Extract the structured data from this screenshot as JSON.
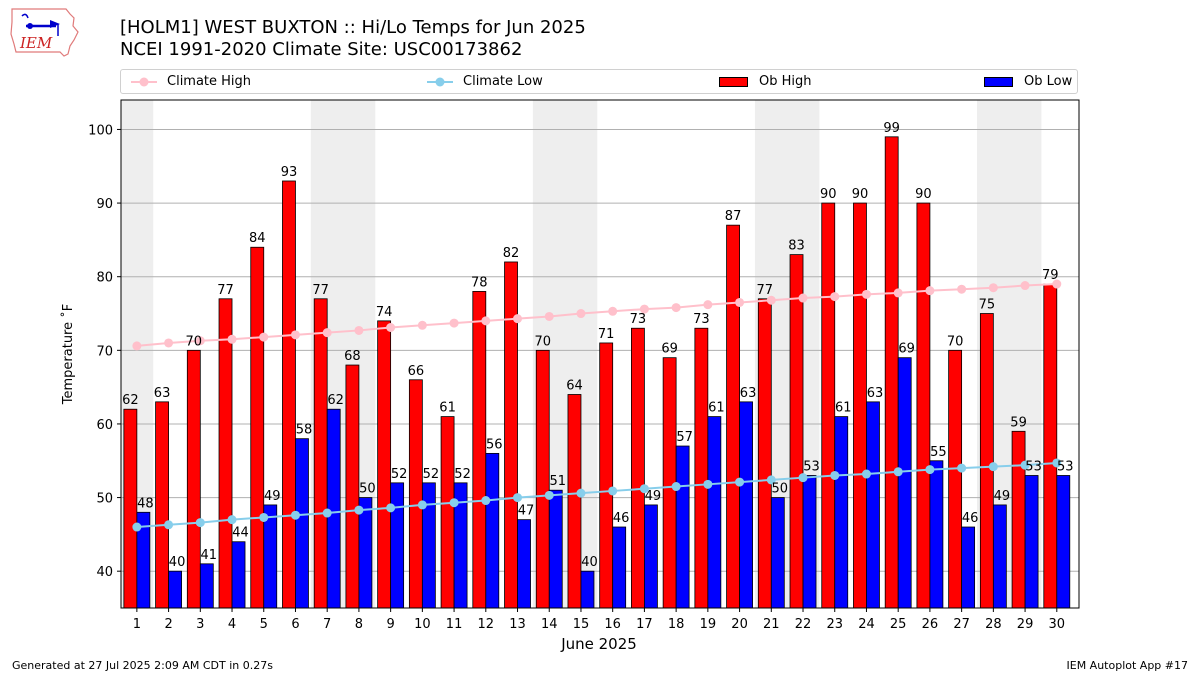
{
  "header": {
    "title_line1": "[HOLM1] WEST BUXTON :: Hi/Lo Temps for Jun 2025",
    "title_line2": "NCEI 1991-2020 Climate Site: USC00173862",
    "logo_text": "IEM"
  },
  "footer": {
    "generated": "Generated at 27 Jul 2025 2:09 AM CDT in 0.27s",
    "app": "IEM Autoplot App #17"
  },
  "colors": {
    "ob_high": "#ff0000",
    "ob_low": "#0000ff",
    "climate_high": "#ffc0cb",
    "climate_low": "#87ceeb",
    "weekend_band": "#eeeeee",
    "grid": "#b0b0b0"
  },
  "chart_data": {
    "type": "bar",
    "title": "[HOLM1] WEST BUXTON :: Hi/Lo Temps for Jun 2025",
    "subtitle": "NCEI 1991-2020 Climate Site: USC00173862",
    "xlabel": "June 2025",
    "ylabel": "Temperature $^\\circ$F",
    "ylabel_display": "Temperature ˚F",
    "ylim": [
      35,
      104
    ],
    "yticks": [
      40,
      50,
      60,
      70,
      80,
      90,
      100
    ],
    "grid": true,
    "legend_position": "top",
    "legend": [
      "Climate High",
      "Climate Low",
      "Ob High",
      "Ob Low"
    ],
    "categories": [
      "1",
      "2",
      "3",
      "4",
      "5",
      "6",
      "7",
      "8",
      "9",
      "10",
      "11",
      "12",
      "13",
      "14",
      "15",
      "16",
      "17",
      "18",
      "19",
      "20",
      "21",
      "22",
      "23",
      "24",
      "25",
      "26",
      "27",
      "28",
      "29",
      "30"
    ],
    "weekend_days": [
      1,
      7,
      8,
      14,
      15,
      21,
      22,
      28,
      29
    ],
    "series": [
      {
        "name": "Ob High",
        "kind": "bar",
        "values": [
          62,
          63,
          70,
          77,
          84,
          93,
          77,
          68,
          74,
          66,
          61,
          78,
          82,
          70,
          64,
          71,
          73,
          69,
          73,
          87,
          77,
          83,
          90,
          90,
          99,
          90,
          70,
          75,
          59,
          79
        ]
      },
      {
        "name": "Ob Low",
        "kind": "bar",
        "values": [
          48,
          40,
          41,
          44,
          49,
          58,
          62,
          50,
          52,
          52,
          52,
          56,
          47,
          51,
          40,
          46,
          49,
          57,
          61,
          63,
          50,
          53,
          61,
          63,
          69,
          55,
          46,
          49,
          53,
          53
        ]
      },
      {
        "name": "Climate High",
        "kind": "line",
        "values": [
          70.6,
          71.0,
          71.3,
          71.5,
          71.8,
          72.1,
          72.4,
          72.7,
          73.1,
          73.4,
          73.7,
          74.0,
          74.3,
          74.6,
          75.0,
          75.3,
          75.6,
          75.8,
          76.2,
          76.5,
          76.8,
          77.1,
          77.3,
          77.6,
          77.8,
          78.1,
          78.3,
          78.5,
          78.8,
          79.0
        ]
      },
      {
        "name": "Climate Low",
        "kind": "line",
        "values": [
          46.0,
          46.3,
          46.6,
          47.0,
          47.3,
          47.6,
          47.9,
          48.3,
          48.6,
          49.0,
          49.3,
          49.6,
          50.0,
          50.3,
          50.6,
          50.9,
          51.2,
          51.5,
          51.8,
          52.1,
          52.4,
          52.7,
          53.0,
          53.2,
          53.5,
          53.8,
          54.0,
          54.2,
          54.4,
          54.7
        ]
      }
    ]
  }
}
